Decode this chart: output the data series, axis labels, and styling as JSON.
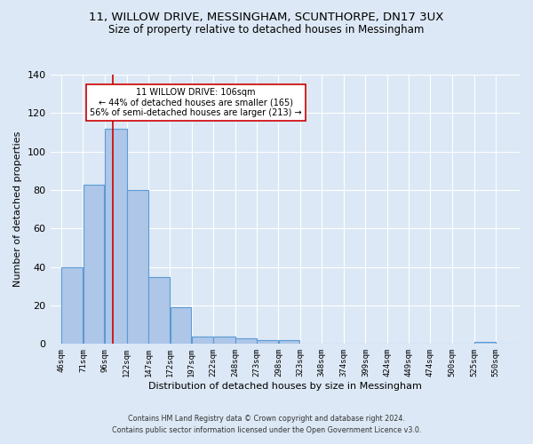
{
  "title1": "11, WILLOW DRIVE, MESSINGHAM, SCUNTHORPE, DN17 3UX",
  "title2": "Size of property relative to detached houses in Messingham",
  "xlabel": "Distribution of detached houses by size in Messingham",
  "ylabel": "Number of detached properties",
  "footnote1": "Contains HM Land Registry data © Crown copyright and database right 2024.",
  "footnote2": "Contains public sector information licensed under the Open Government Licence v3.0.",
  "bar_edges": [
    46,
    71,
    96,
    122,
    147,
    172,
    197,
    222,
    248,
    273,
    298,
    323,
    348,
    374,
    399,
    424,
    449,
    474,
    500,
    525,
    550
  ],
  "bar_heights": [
    40,
    83,
    112,
    80,
    35,
    19,
    4,
    4,
    3,
    2,
    2,
    0,
    0,
    0,
    0,
    0,
    0,
    0,
    0,
    1,
    0
  ],
  "bar_color": "#aec6e8",
  "bar_edge_color": "#5b9bd5",
  "property_size": 106,
  "red_line_color": "#cc0000",
  "annotation_text": "11 WILLOW DRIVE: 106sqm\n← 44% of detached houses are smaller (165)\n56% of semi-detached houses are larger (213) →",
  "annotation_box_color": "#ffffff",
  "annotation_box_edge_color": "#cc0000",
  "ylim": [
    0,
    140
  ],
  "background_color": "#dce8f5",
  "grid_color": "#ffffff",
  "title_fontsize": 9.5,
  "subtitle_fontsize": 8.5,
  "tick_label_fontsize": 6.5,
  "ylabel_fontsize": 8,
  "xlabel_fontsize": 8,
  "footnote_fontsize": 5.8,
  "annotation_fontsize": 7
}
